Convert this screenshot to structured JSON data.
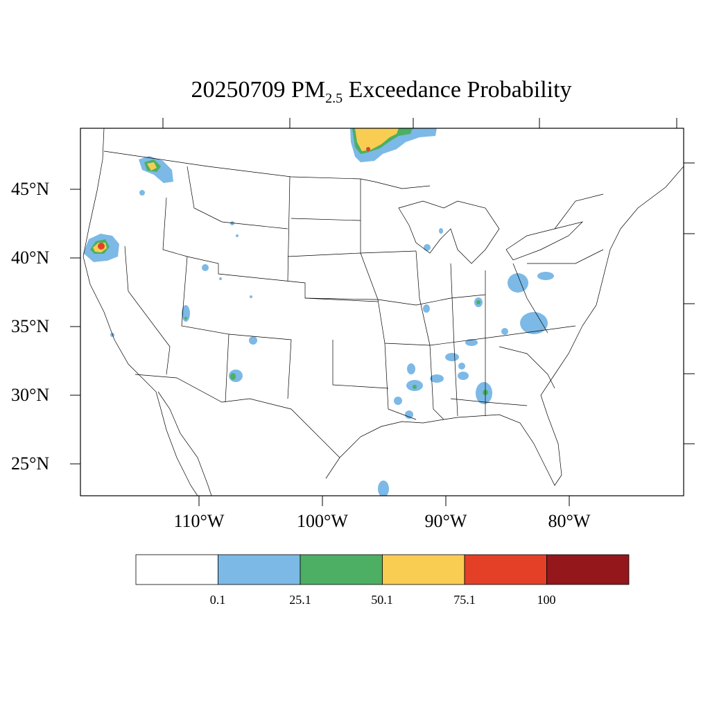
{
  "title": {
    "prefix": "20250709 PM",
    "subscript": "2.5",
    "suffix": " Exceedance Probability"
  },
  "axes": {
    "lat_labels": [
      "45°N",
      "40°N",
      "35°N",
      "30°N",
      "25°N"
    ],
    "lon_labels": [
      "110°W",
      "100°W",
      "90°W",
      "80°W"
    ]
  },
  "legend": {
    "colors": [
      "#ffffff",
      "#7cb9e6",
      "#4caf63",
      "#f9cd52",
      "#e34027",
      "#93171b"
    ],
    "labels": [
      "0.1",
      "25.1",
      "50.1",
      "75.1",
      "100"
    ]
  }
}
